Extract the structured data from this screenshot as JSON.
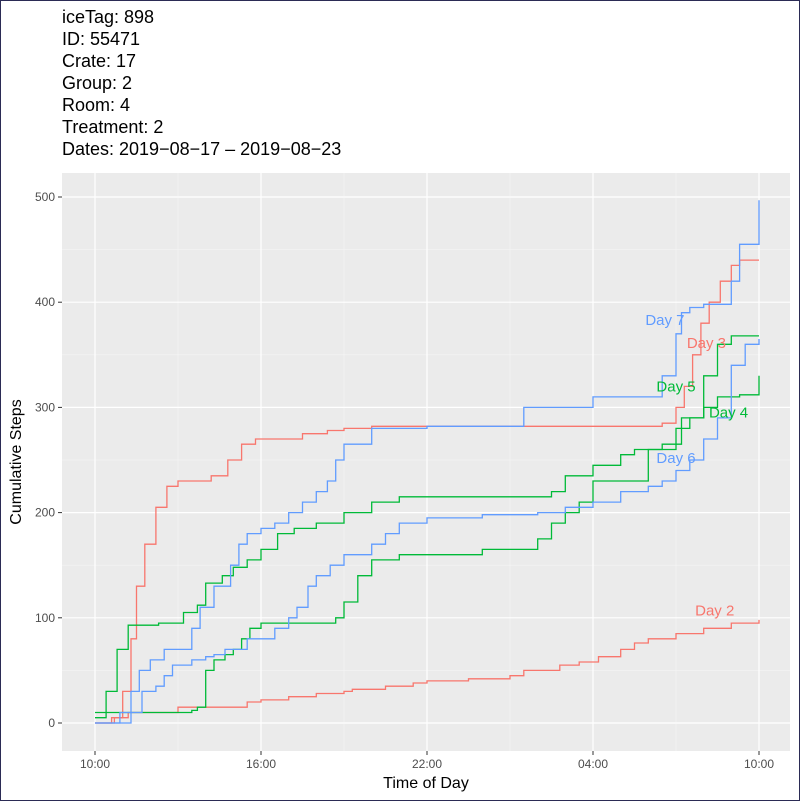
{
  "header": {
    "lines": [
      "iceTag: 898",
      "ID: 55471",
      "Crate: 17",
      "Group: 2",
      "Room: 4",
      "Treatment: 2",
      "Dates: 2019−08−17 – 2019−08−23"
    ]
  },
  "chart_data": {
    "type": "line",
    "step": true,
    "xlabel": "Time of Day",
    "ylabel": "Cumulative Steps",
    "x_ticks": [
      "10:00",
      "16:00",
      "22:00",
      "04:00",
      "10:00"
    ],
    "y_ticks": [
      0,
      100,
      200,
      300,
      400,
      500
    ],
    "xlim_hours": [
      0,
      24
    ],
    "ylim": [
      -20,
      510
    ],
    "background": "#ebebeb",
    "grid": true,
    "legend": "none",
    "series": [
      {
        "name": "Day 2",
        "color": "#F8766D",
        "x": [
          0,
          0.7,
          1.2,
          3,
          5.5,
          6,
          7,
          8,
          9,
          9.3,
          10.5,
          11.5,
          12,
          13.5,
          15,
          15.5,
          16.8,
          17.5,
          18.2,
          19,
          19.5,
          20,
          21,
          22,
          23,
          24
        ],
        "y": [
          0,
          5,
          10,
          15,
          20,
          22,
          25,
          28,
          30,
          32,
          35,
          38,
          40,
          42,
          45,
          50,
          55,
          58,
          63,
          70,
          76,
          80,
          85,
          90,
          95,
          98
        ]
      },
      {
        "name": "Day 3",
        "color": "#F8766D",
        "x": [
          0,
          0.6,
          1,
          1.3,
          1.5,
          1.8,
          2.2,
          2.6,
          3,
          4.2,
          4.8,
          5.3,
          5.8,
          7.5,
          8.4,
          9,
          10,
          12,
          15,
          18,
          20.5,
          21,
          21.3,
          21.6,
          21.9,
          22.2,
          22.6,
          23,
          23.3,
          24
        ],
        "y": [
          0,
          5,
          30,
          80,
          130,
          170,
          205,
          225,
          230,
          235,
          250,
          265,
          270,
          275,
          278,
          280,
          282,
          282,
          282,
          282,
          285,
          300,
          320,
          350,
          380,
          400,
          420,
          435,
          440,
          440
        ]
      },
      {
        "name": "Day 4",
        "color": "#00BA38",
        "x": [
          0,
          1.5,
          2.5,
          3.5,
          3.7,
          4,
          4.3,
          4.7,
          5,
          5.3,
          5.6,
          6,
          6.5,
          7.3,
          8,
          8.7,
          9,
          9.5,
          10,
          11,
          14,
          16,
          16.5,
          17,
          17.5,
          18,
          20,
          21,
          21.5,
          22,
          22.5,
          23.3,
          24
        ],
        "y": [
          10,
          10,
          10,
          12,
          15,
          50,
          60,
          65,
          70,
          80,
          90,
          95,
          95,
          95,
          95,
          100,
          115,
          140,
          155,
          160,
          165,
          175,
          190,
          200,
          210,
          230,
          260,
          280,
          290,
          300,
          310,
          312,
          330
        ]
      },
      {
        "name": "Day 5",
        "color": "#00BA38",
        "x": [
          0,
          0.4,
          0.8,
          1.2,
          2.3,
          3.2,
          3.7,
          4,
          4.6,
          5,
          5.5,
          6,
          6.6,
          7.2,
          8,
          9,
          10,
          11,
          12.5,
          14,
          16.5,
          17,
          18,
          19,
          19.5,
          20.5,
          21.2,
          22,
          22.5,
          23,
          24
        ],
        "y": [
          5,
          30,
          70,
          93,
          95,
          105,
          112,
          133,
          140,
          148,
          155,
          165,
          180,
          185,
          190,
          200,
          210,
          215,
          215,
          215,
          220,
          235,
          245,
          255,
          260,
          265,
          290,
          330,
          360,
          368,
          368
        ]
      },
      {
        "name": "Day 6",
        "color": "#619CFF",
        "x": [
          0,
          1.3,
          1.7,
          2.2,
          2.5,
          2.8,
          3.5,
          4,
          4.3,
          4.7,
          5.5,
          6.5,
          7,
          7.3,
          7.7,
          8,
          8.5,
          9,
          10,
          10.5,
          11,
          12,
          14,
          16,
          17,
          18,
          19,
          20,
          20.5,
          21,
          21.5,
          22,
          22.5,
          23,
          23.5,
          24
        ],
        "y": [
          0,
          10,
          30,
          35,
          45,
          55,
          60,
          63,
          65,
          70,
          80,
          90,
          100,
          110,
          130,
          140,
          150,
          160,
          170,
          180,
          190,
          195,
          198,
          200,
          205,
          210,
          220,
          225,
          230,
          240,
          250,
          270,
          290,
          340,
          360,
          365
        ]
      },
      {
        "name": "Day 7",
        "color": "#619CFF",
        "x": [
          0,
          0.9,
          1.3,
          1.6,
          2,
          2.5,
          3.5,
          3.8,
          4.3,
          4.9,
          5.2,
          5.5,
          6,
          6.5,
          7,
          7.5,
          8,
          8.4,
          8.7,
          9,
          10,
          12,
          15,
          15.5,
          18,
          20,
          20.5,
          21,
          21.2,
          21.5,
          22,
          23,
          23.3,
          24
        ],
        "y": [
          0,
          10,
          30,
          50,
          60,
          70,
          90,
          110,
          130,
          150,
          170,
          180,
          185,
          190,
          200,
          210,
          220,
          230,
          250,
          265,
          280,
          282,
          282,
          300,
          310,
          310,
          330,
          370,
          390,
          395,
          398,
          420,
          455,
          497
        ]
      }
    ],
    "annotations": [
      {
        "text": "Day 2",
        "color": "#F8766D",
        "x": 22.4,
        "y": 107
      },
      {
        "text": "Day 3",
        "color": "#F8766D",
        "x": 22.1,
        "y": 361
      },
      {
        "text": "Day 4",
        "color": "#00BA38",
        "x": 22.9,
        "y": 295
      },
      {
        "text": "Day 5",
        "color": "#00BA38",
        "x": 21.0,
        "y": 320
      },
      {
        "text": "Day 6",
        "color": "#619CFF",
        "x": 21.0,
        "y": 252
      },
      {
        "text": "Day 7",
        "color": "#619CFF",
        "x": 20.6,
        "y": 383
      }
    ]
  }
}
